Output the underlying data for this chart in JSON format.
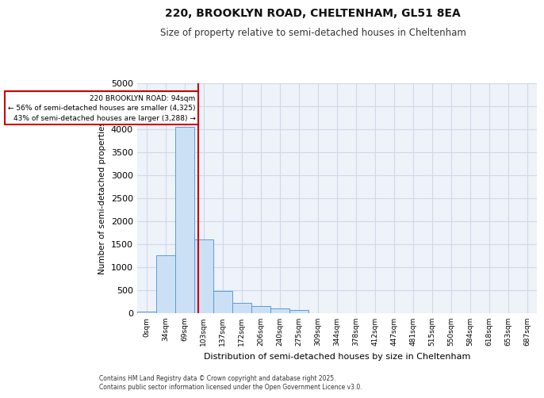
{
  "title_line1": "220, BROOKLYN ROAD, CHELTENHAM, GL51 8EA",
  "title_line2": "Size of property relative to semi-detached houses in Cheltenham",
  "xlabel": "Distribution of semi-detached houses by size in Cheltenham",
  "ylabel": "Number of semi-detached properties",
  "footer_line1": "Contains HM Land Registry data © Crown copyright and database right 2025.",
  "footer_line2": "Contains public sector information licensed under the Open Government Licence v3.0.",
  "bin_labels": [
    "0sqm",
    "34sqm",
    "69sqm",
    "103sqm",
    "137sqm",
    "172sqm",
    "206sqm",
    "240sqm",
    "275sqm",
    "309sqm",
    "344sqm",
    "378sqm",
    "412sqm",
    "447sqm",
    "481sqm",
    "515sqm",
    "550sqm",
    "584sqm",
    "618sqm",
    "653sqm",
    "687sqm"
  ],
  "bar_values": [
    30,
    1250,
    4050,
    1600,
    480,
    210,
    140,
    90,
    60,
    0,
    0,
    0,
    0,
    0,
    0,
    0,
    0,
    0,
    0,
    0,
    0
  ],
  "bar_color": "#cce0f5",
  "bar_edge_color": "#5b9bd5",
  "grid_color": "#d0d8e8",
  "background_color": "#eef2f9",
  "vline_x_index": 2.72,
  "vline_color": "#cc0000",
  "annotation_text": "220 BROOKLYN ROAD: 94sqm\n← 56% of semi-detached houses are smaller (4,325)\n43% of semi-detached houses are larger (3,288) →",
  "annotation_box_color": "#cc0000",
  "ylim": [
    0,
    5000
  ],
  "yticks": [
    0,
    500,
    1000,
    1500,
    2000,
    2500,
    3000,
    3500,
    4000,
    4500,
    5000
  ]
}
